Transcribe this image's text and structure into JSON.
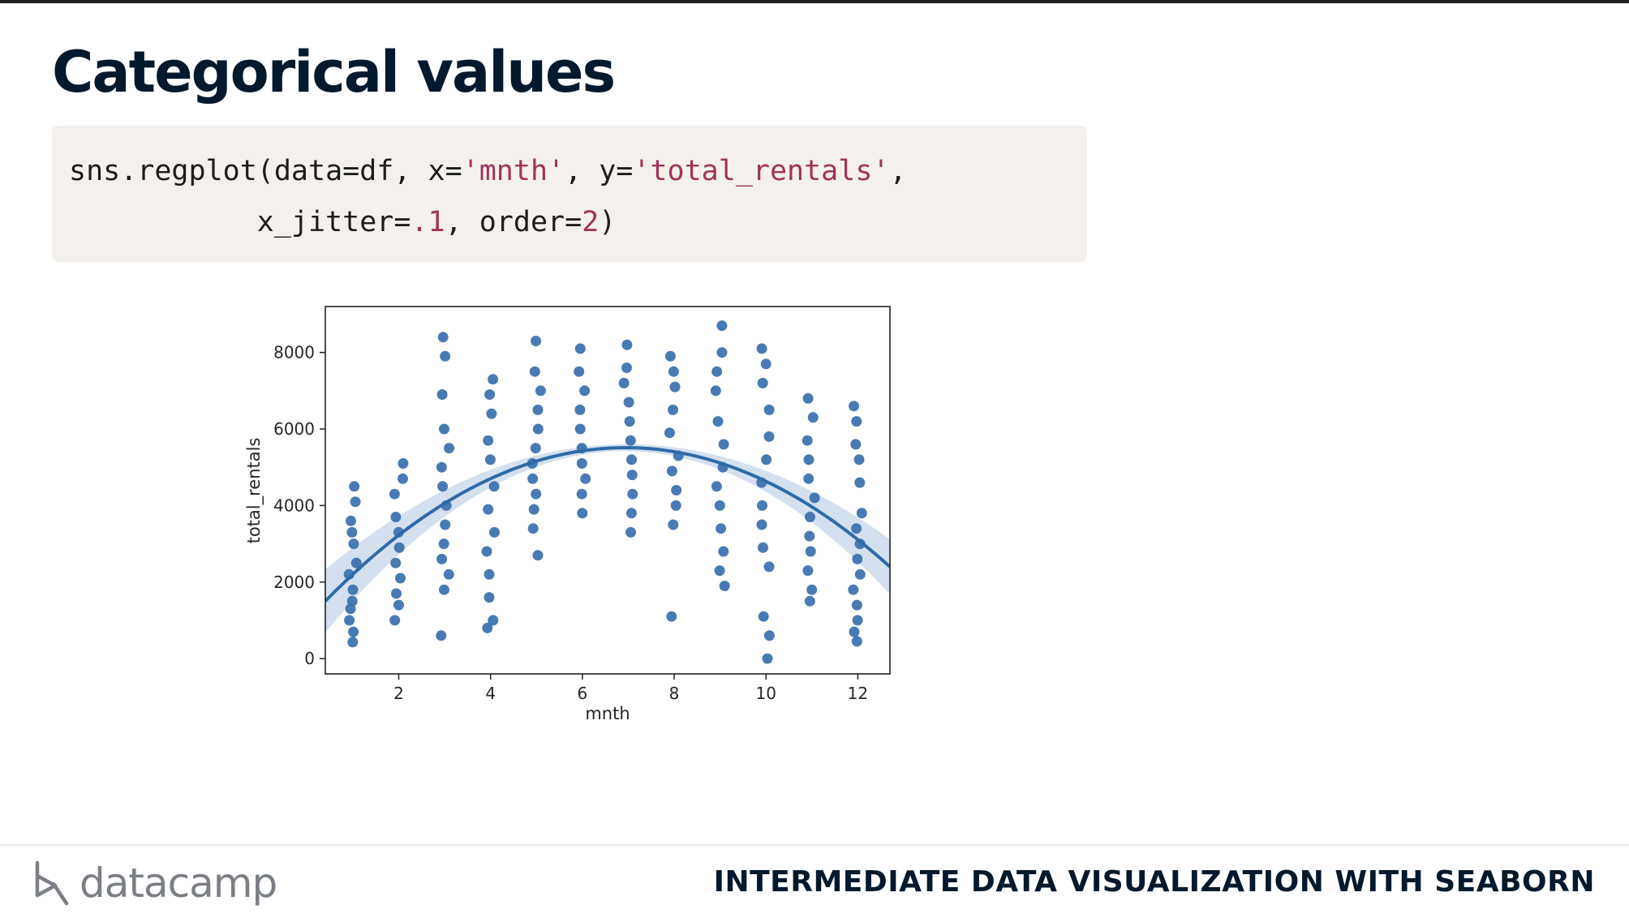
{
  "slide": {
    "title": "Categorical values"
  },
  "code": {
    "line1": {
      "t1": "sns.regplot(data=df, x=",
      "s1": "'mnth'",
      "t2": ", y=",
      "s2": "'total_rentals'",
      "t3": ","
    },
    "line2": {
      "indent": "           ",
      "t1": "x_jitter=",
      "n1": ".1",
      "t2": ", order=",
      "n2": "2",
      "t3": ")"
    }
  },
  "chart_data": {
    "type": "scatter",
    "xlabel": "mnth",
    "ylabel": "total_rentals",
    "xlim": [
      0.4,
      12.7
    ],
    "ylim": [
      -400,
      9200
    ],
    "xticks": [
      2,
      4,
      6,
      8,
      10,
      12
    ],
    "yticks": [
      0,
      2000,
      4000,
      6000,
      8000
    ],
    "grid": false,
    "regression": {
      "order": 2,
      "curve_peak_x": 7.3,
      "curve_peak_y": 5750
    },
    "series": [
      {
        "points": [
          [
            1,
            430
          ],
          [
            1,
            700
          ],
          [
            1,
            1000
          ],
          [
            1,
            1300
          ],
          [
            1,
            1500
          ],
          [
            1,
            1800
          ],
          [
            1,
            2200
          ],
          [
            1,
            2500
          ],
          [
            1,
            3000
          ],
          [
            1,
            3300
          ],
          [
            1,
            3600
          ],
          [
            1,
            4100
          ],
          [
            1,
            4500
          ],
          [
            2,
            1000
          ],
          [
            2,
            1400
          ],
          [
            2,
            1700
          ],
          [
            2,
            2100
          ],
          [
            2,
            2500
          ],
          [
            2,
            2900
          ],
          [
            2,
            3300
          ],
          [
            2,
            3700
          ],
          [
            2,
            4300
          ],
          [
            2,
            4700
          ],
          [
            2,
            5100
          ],
          [
            3,
            600
          ],
          [
            3,
            1800
          ],
          [
            3,
            2200
          ],
          [
            3,
            2600
          ],
          [
            3,
            3000
          ],
          [
            3,
            3500
          ],
          [
            3,
            4000
          ],
          [
            3,
            4500
          ],
          [
            3,
            5000
          ],
          [
            3,
            5500
          ],
          [
            3,
            6000
          ],
          [
            3,
            6900
          ],
          [
            3,
            7900
          ],
          [
            3,
            8400
          ],
          [
            4,
            800
          ],
          [
            4,
            1000
          ],
          [
            4,
            1600
          ],
          [
            4,
            2200
          ],
          [
            4,
            2800
          ],
          [
            4,
            3300
          ],
          [
            4,
            3900
          ],
          [
            4,
            4500
          ],
          [
            4,
            5200
          ],
          [
            4,
            5700
          ],
          [
            4,
            6400
          ],
          [
            4,
            6900
          ],
          [
            4,
            7300
          ],
          [
            5,
            2700
          ],
          [
            5,
            3400
          ],
          [
            5,
            3900
          ],
          [
            5,
            4300
          ],
          [
            5,
            4700
          ],
          [
            5,
            5100
          ],
          [
            5,
            5500
          ],
          [
            5,
            6000
          ],
          [
            5,
            6500
          ],
          [
            5,
            7000
          ],
          [
            5,
            7500
          ],
          [
            5,
            8300
          ],
          [
            6,
            3800
          ],
          [
            6,
            4300
          ],
          [
            6,
            4700
          ],
          [
            6,
            5100
          ],
          [
            6,
            5500
          ],
          [
            6,
            6000
          ],
          [
            6,
            6500
          ],
          [
            6,
            7000
          ],
          [
            6,
            7500
          ],
          [
            6,
            8100
          ],
          [
            7,
            3300
          ],
          [
            7,
            3800
          ],
          [
            7,
            4300
          ],
          [
            7,
            4800
          ],
          [
            7,
            5200
          ],
          [
            7,
            5700
          ],
          [
            7,
            6200
          ],
          [
            7,
            6700
          ],
          [
            7,
            7200
          ],
          [
            7,
            7600
          ],
          [
            7,
            8200
          ],
          [
            8,
            1100
          ],
          [
            8,
            3500
          ],
          [
            8,
            4000
          ],
          [
            8,
            4400
          ],
          [
            8,
            4900
          ],
          [
            8,
            5300
          ],
          [
            8,
            5900
          ],
          [
            8,
            6500
          ],
          [
            8,
            7100
          ],
          [
            8,
            7500
          ],
          [
            8,
            7900
          ],
          [
            9,
            1900
          ],
          [
            9,
            2300
          ],
          [
            9,
            2800
          ],
          [
            9,
            3400
          ],
          [
            9,
            4000
          ],
          [
            9,
            4500
          ],
          [
            9,
            5000
          ],
          [
            9,
            5600
          ],
          [
            9,
            6200
          ],
          [
            9,
            7000
          ],
          [
            9,
            7500
          ],
          [
            9,
            8000
          ],
          [
            9,
            8700
          ],
          [
            10,
            0
          ],
          [
            10,
            600
          ],
          [
            10,
            1100
          ],
          [
            10,
            2400
          ],
          [
            10,
            2900
          ],
          [
            10,
            3500
          ],
          [
            10,
            4000
          ],
          [
            10,
            4600
          ],
          [
            10,
            5200
          ],
          [
            10,
            5800
          ],
          [
            10,
            6500
          ],
          [
            10,
            7200
          ],
          [
            10,
            7700
          ],
          [
            10,
            8100
          ],
          [
            11,
            1500
          ],
          [
            11,
            1800
          ],
          [
            11,
            2300
          ],
          [
            11,
            2800
          ],
          [
            11,
            3200
          ],
          [
            11,
            3700
          ],
          [
            11,
            4200
          ],
          [
            11,
            4700
          ],
          [
            11,
            5200
          ],
          [
            11,
            5700
          ],
          [
            11,
            6300
          ],
          [
            11,
            6800
          ],
          [
            12,
            450
          ],
          [
            12,
            700
          ],
          [
            12,
            1000
          ],
          [
            12,
            1400
          ],
          [
            12,
            1800
          ],
          [
            12,
            2200
          ],
          [
            12,
            2600
          ],
          [
            12,
            3000
          ],
          [
            12,
            3400
          ],
          [
            12,
            3800
          ],
          [
            12,
            4600
          ],
          [
            12,
            5200
          ],
          [
            12,
            5600
          ],
          [
            12,
            6200
          ],
          [
            12,
            6600
          ]
        ]
      }
    ]
  },
  "footer": {
    "brand": "datacamp",
    "course": "INTERMEDIATE DATA VISUALIZATION WITH SEABORN"
  },
  "colors": {
    "point": "#3a6fad",
    "regline": "#2f6aa8",
    "ci_band": "#9fbbdc",
    "title": "#05192d",
    "code_bg": "#f4f1ec",
    "code_string": "#a1335c"
  },
  "icons": {
    "logo": "datacamp-logo-icon"
  }
}
